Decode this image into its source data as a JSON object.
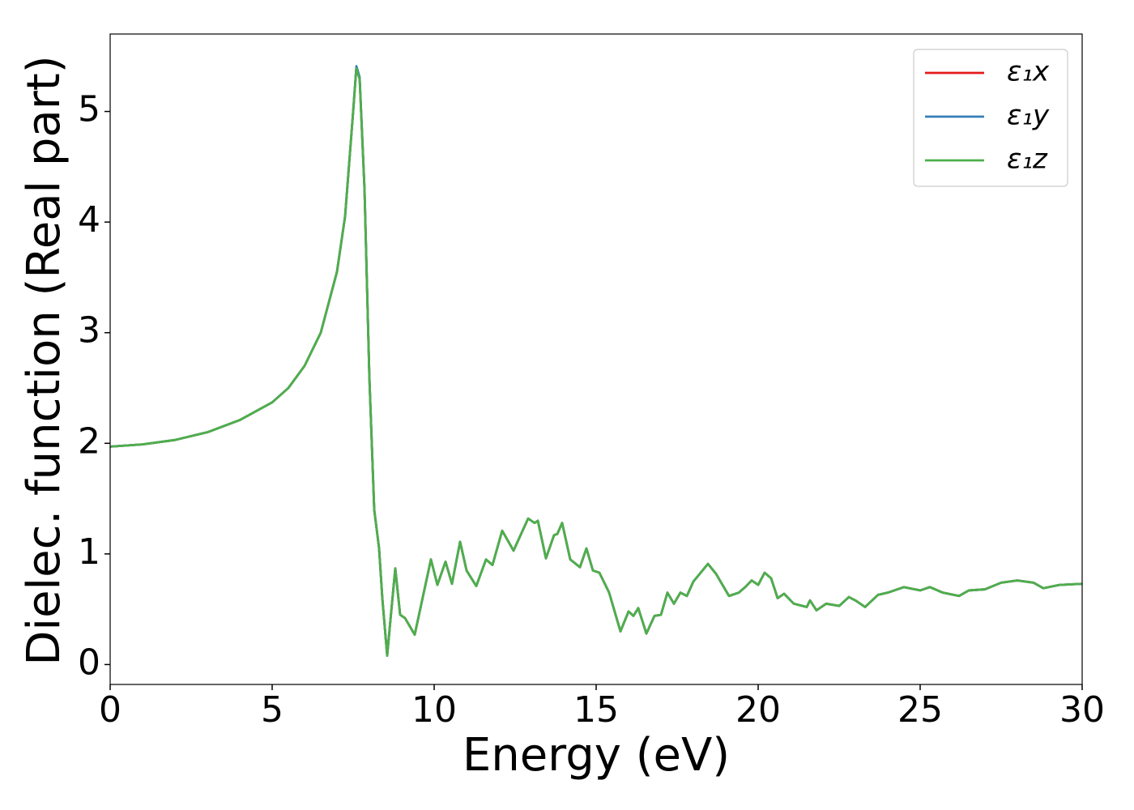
{
  "chart_data": {
    "type": "line",
    "xlabel": "Energy (eV)",
    "ylabel": "Dielec. function (Real part)",
    "x": [
      0,
      1,
      2,
      3,
      4,
      5,
      5.5,
      6,
      6.5,
      7,
      7.25,
      7.5,
      7.6,
      7.7,
      7.85,
      8.0,
      8.15,
      8.3,
      8.4,
      8.55,
      8.65,
      8.8,
      8.95,
      9.1,
      9.4,
      9.9,
      10.1,
      10.35,
      10.55,
      10.8,
      11.0,
      11.3,
      11.6,
      11.8,
      12.1,
      12.45,
      12.9,
      13.1,
      13.2,
      13.45,
      13.7,
      13.8,
      13.95,
      14.2,
      14.5,
      14.7,
      14.9,
      15.1,
      15.4,
      15.75,
      16.0,
      16.15,
      16.3,
      16.55,
      16.8,
      17.0,
      17.2,
      17.4,
      17.6,
      17.8,
      18.0,
      18.45,
      18.7,
      19.1,
      19.4,
      19.6,
      19.8,
      20.0,
      20.2,
      20.4,
      20.6,
      20.8,
      21.1,
      21.5,
      21.6,
      21.8,
      22.1,
      22.5,
      22.8,
      23.0,
      23.3,
      23.7,
      24.0,
      24.5,
      25.0,
      25.3,
      25.7,
      26.2,
      26.5,
      27.0,
      27.5,
      28.0,
      28.5,
      28.8,
      29.3,
      30
    ],
    "series": [
      {
        "name": "ε₁x",
        "color": "#e41a1c",
        "values": [
          1.97,
          1.99,
          2.03,
          2.1,
          2.21,
          2.37,
          2.5,
          2.7,
          3.0,
          3.55,
          4.05,
          5.0,
          5.4,
          5.3,
          4.3,
          2.6,
          1.4,
          1.05,
          0.6,
          0.08,
          0.4,
          0.87,
          0.45,
          0.42,
          0.27,
          0.95,
          0.72,
          0.93,
          0.73,
          1.11,
          0.85,
          0.71,
          0.95,
          0.9,
          1.21,
          1.03,
          1.32,
          1.28,
          1.3,
          0.96,
          1.17,
          1.18,
          1.28,
          0.95,
          0.88,
          1.05,
          0.85,
          0.83,
          0.65,
          0.3,
          0.48,
          0.44,
          0.51,
          0.28,
          0.44,
          0.45,
          0.65,
          0.55,
          0.65,
          0.62,
          0.75,
          0.91,
          0.82,
          0.62,
          0.65,
          0.7,
          0.76,
          0.72,
          0.83,
          0.78,
          0.6,
          0.64,
          0.55,
          0.52,
          0.58,
          0.49,
          0.55,
          0.53,
          0.61,
          0.58,
          0.52,
          0.63,
          0.65,
          0.7,
          0.67,
          0.7,
          0.65,
          0.62,
          0.67,
          0.68,
          0.74,
          0.76,
          0.74,
          0.69,
          0.72,
          0.73
        ]
      },
      {
        "name": "ε₁y",
        "color": "#377eb8",
        "values": [
          1.97,
          1.99,
          2.03,
          2.1,
          2.21,
          2.37,
          2.5,
          2.7,
          3.0,
          3.55,
          4.05,
          5.0,
          5.41,
          5.31,
          4.3,
          2.6,
          1.4,
          1.05,
          0.6,
          0.08,
          0.4,
          0.87,
          0.45,
          0.42,
          0.27,
          0.95,
          0.72,
          0.93,
          0.73,
          1.11,
          0.85,
          0.71,
          0.95,
          0.9,
          1.21,
          1.03,
          1.32,
          1.28,
          1.3,
          0.96,
          1.17,
          1.18,
          1.28,
          0.95,
          0.88,
          1.05,
          0.85,
          0.83,
          0.65,
          0.3,
          0.48,
          0.44,
          0.51,
          0.28,
          0.44,
          0.45,
          0.65,
          0.55,
          0.65,
          0.62,
          0.75,
          0.91,
          0.82,
          0.62,
          0.65,
          0.7,
          0.76,
          0.72,
          0.83,
          0.78,
          0.6,
          0.64,
          0.55,
          0.52,
          0.58,
          0.49,
          0.55,
          0.53,
          0.61,
          0.58,
          0.52,
          0.63,
          0.65,
          0.7,
          0.67,
          0.7,
          0.65,
          0.62,
          0.67,
          0.68,
          0.74,
          0.76,
          0.74,
          0.69,
          0.72,
          0.73
        ]
      },
      {
        "name": "ε₁z",
        "color": "#4daf4a",
        "values": [
          1.97,
          1.99,
          2.03,
          2.1,
          2.21,
          2.37,
          2.5,
          2.7,
          3.0,
          3.55,
          4.05,
          5.0,
          5.39,
          5.29,
          4.3,
          2.6,
          1.4,
          1.05,
          0.6,
          0.08,
          0.4,
          0.87,
          0.45,
          0.42,
          0.27,
          0.95,
          0.72,
          0.93,
          0.73,
          1.11,
          0.85,
          0.71,
          0.95,
          0.9,
          1.21,
          1.03,
          1.32,
          1.28,
          1.3,
          0.96,
          1.17,
          1.18,
          1.28,
          0.95,
          0.88,
          1.05,
          0.85,
          0.83,
          0.65,
          0.3,
          0.48,
          0.44,
          0.51,
          0.28,
          0.44,
          0.45,
          0.65,
          0.55,
          0.65,
          0.62,
          0.75,
          0.91,
          0.82,
          0.62,
          0.65,
          0.7,
          0.76,
          0.72,
          0.83,
          0.78,
          0.6,
          0.64,
          0.55,
          0.52,
          0.58,
          0.49,
          0.55,
          0.53,
          0.61,
          0.58,
          0.52,
          0.63,
          0.65,
          0.7,
          0.67,
          0.7,
          0.65,
          0.62,
          0.67,
          0.68,
          0.74,
          0.76,
          0.74,
          0.69,
          0.72,
          0.73
        ]
      }
    ],
    "xlim": [
      0,
      30
    ],
    "xticks": [
      0,
      5,
      10,
      15,
      20,
      25,
      30
    ],
    "ylim": [
      -0.18,
      5.7
    ],
    "yticks": [
      0,
      1,
      2,
      3,
      4,
      5
    ],
    "grid": false,
    "legend": "upper right"
  }
}
